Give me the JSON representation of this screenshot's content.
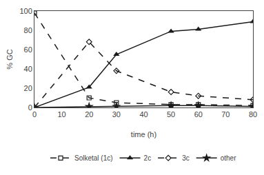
{
  "chart_data": {
    "type": "line",
    "x": [
      0,
      20,
      30,
      50,
      60,
      80
    ],
    "series": [
      {
        "name": "Solketal (1c)",
        "color": "#1a1a1a",
        "values": [
          98,
          10,
          5,
          3,
          3,
          2
        ],
        "marker": "square-open",
        "line_style": "dashed"
      },
      {
        "name": "2c",
        "color": "#1a1a1a",
        "values": [
          0,
          21,
          55,
          79,
          81,
          89
        ],
        "marker": "triangle-up",
        "line_style": "solid"
      },
      {
        "name": "3c",
        "color": "#1a1a1a",
        "values": [
          0,
          68,
          38,
          16,
          12,
          8
        ],
        "marker": "diamond-open",
        "line_style": "dashed"
      },
      {
        "name": "other",
        "color": "#1a1a1a",
        "values": [
          0,
          1,
          1,
          2,
          2,
          1
        ],
        "marker": "star",
        "line_style": "solid"
      }
    ],
    "xlabel": "time (h)",
    "ylabel": "% GC",
    "xlim": [
      0,
      80
    ],
    "ylim": [
      0,
      100
    ],
    "xticks": [
      0,
      10,
      20,
      30,
      40,
      50,
      60,
      70,
      80
    ],
    "yticks": [
      0,
      20,
      40,
      60,
      80,
      100
    ],
    "grid": false,
    "legend": "bottom"
  }
}
